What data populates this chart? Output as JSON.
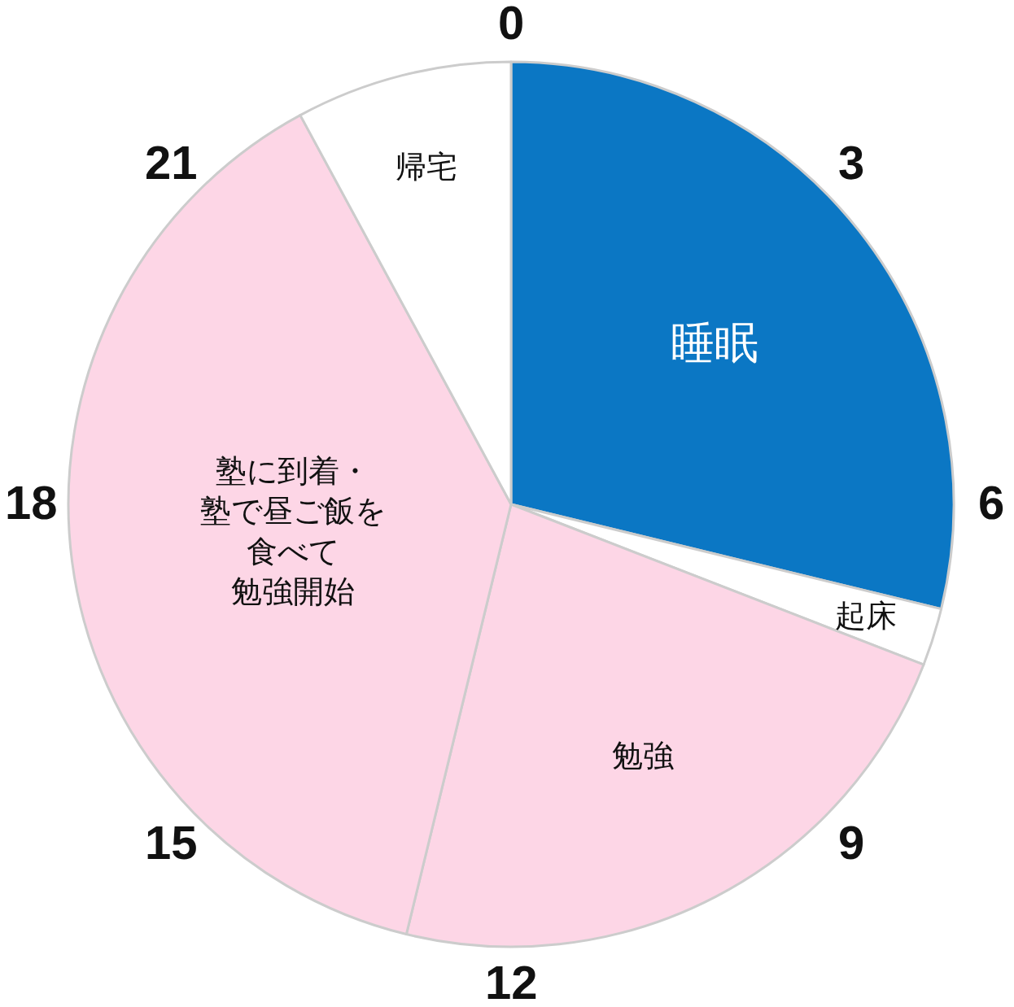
{
  "chart_data": {
    "type": "pie",
    "categories": [
      "睡眠",
      "起床",
      "勉強",
      "塾に到着・塾で昼ご飯を食べて勉強開始",
      "帰宅"
    ],
    "values": [
      28.8,
      2.1,
      22.9,
      38.3,
      7.9
    ],
    "colors": [
      "#0b77c4",
      "#ffffff",
      "#fdd6e6",
      "#fdd6e6",
      "#ffffff"
    ],
    "annotations": [
      "0",
      "3",
      "6",
      "9",
      "12",
      "15",
      "18",
      "21"
    ]
  }
}
